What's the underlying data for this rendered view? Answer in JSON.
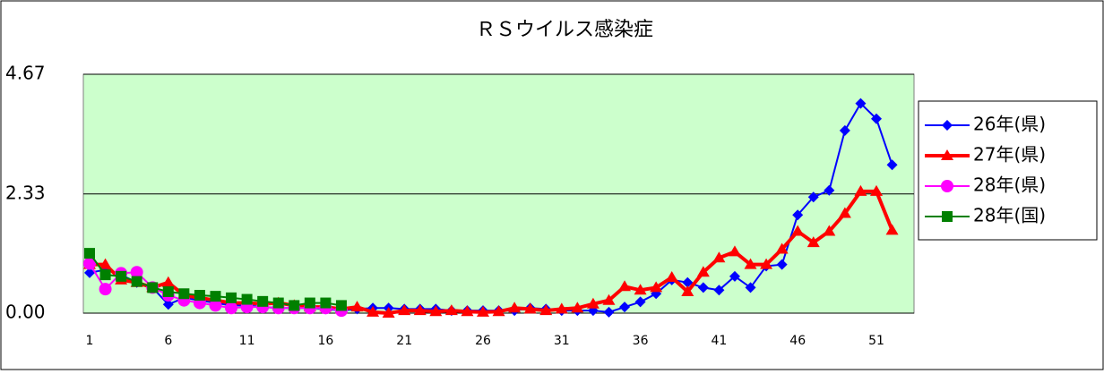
{
  "chart_data": {
    "type": "line",
    "title": "ＲＳウイルス感染症",
    "categories": [
      "1",
      null,
      null,
      null,
      null,
      "6",
      null,
      null,
      null,
      null,
      "11",
      null,
      null,
      null,
      null,
      "16",
      null,
      null,
      null,
      null,
      "21",
      null,
      null,
      null,
      null,
      "26",
      null,
      null,
      null,
      null,
      "31",
      null,
      null,
      null,
      null,
      "36",
      null,
      null,
      null,
      null,
      "41",
      null,
      null,
      null,
      null,
      "46",
      null,
      null,
      null,
      null,
      "51",
      null
    ],
    "ylim": [
      0,
      4.67
    ],
    "yticks": [
      {
        "value": 0,
        "label": "0.00"
      },
      2.33,
      4.67
    ],
    "grid": true,
    "legend": "right",
    "series": [
      {
        "name": "26年(県)",
        "color": "#0000ff",
        "marker": "diamond",
        "line_width": 2,
        "values": [
          0.79,
          0.85,
          0.75,
          0.6,
          0.5,
          0.17,
          0.3,
          0.25,
          0.2,
          0.15,
          0.15,
          0.12,
          0.1,
          0.1,
          0.1,
          0.08,
          0.05,
          0.08,
          0.1,
          0.1,
          0.08,
          0.08,
          0.08,
          0.05,
          0.05,
          0.05,
          0.05,
          0.05,
          0.1,
          0.08,
          0.05,
          0.05,
          0.05,
          0.02,
          0.12,
          0.22,
          0.38,
          0.65,
          0.6,
          0.5,
          0.45,
          0.72,
          0.5,
          0.92,
          0.95,
          1.92,
          2.27,
          2.4,
          3.57,
          4.1,
          3.8,
          2.9
        ]
      },
      {
        "name": "27年(県)",
        "color": "#ff0000",
        "marker": "triangle",
        "line_width": 4,
        "values": [
          0.95,
          0.95,
          0.65,
          0.6,
          0.5,
          0.6,
          0.35,
          0.3,
          0.25,
          0.2,
          0.2,
          0.18,
          0.2,
          0.15,
          0.12,
          0.12,
          0.08,
          0.12,
          0.02,
          0.0,
          0.05,
          0.05,
          0.03,
          0.05,
          0.03,
          0.02,
          0.03,
          0.1,
          0.08,
          0.05,
          0.08,
          0.1,
          0.18,
          0.25,
          0.52,
          0.45,
          0.5,
          0.7,
          0.42,
          0.8,
          1.08,
          1.2,
          0.95,
          0.95,
          1.25,
          1.6,
          1.38,
          1.6,
          1.95,
          2.38,
          2.38,
          1.62
        ]
      },
      {
        "name": "28年(県)",
        "color": "#ff00ff",
        "marker": "circle",
        "line_width": 2,
        "values": [
          0.97,
          0.47,
          0.78,
          0.8,
          0.5,
          0.35,
          0.25,
          0.2,
          0.15,
          0.1,
          0.12,
          0.12,
          0.1,
          0.1,
          0.1,
          0.1,
          0.05,
          null,
          null,
          null,
          null,
          null,
          null,
          null,
          null,
          null,
          null,
          null,
          null,
          null,
          null,
          null,
          null,
          null,
          null,
          null,
          null,
          null,
          null,
          null,
          null,
          null,
          null,
          null,
          null,
          null,
          null,
          null,
          null,
          null,
          null,
          null
        ]
      },
      {
        "name": "28年(国)",
        "color": "#008000",
        "marker": "square",
        "line_width": 2,
        "values": [
          1.17,
          0.75,
          0.72,
          0.62,
          0.5,
          0.42,
          0.38,
          0.35,
          0.33,
          0.3,
          0.27,
          0.23,
          0.2,
          0.15,
          0.2,
          0.2,
          0.15,
          null,
          null,
          null,
          null,
          null,
          null,
          null,
          null,
          null,
          null,
          null,
          null,
          null,
          null,
          null,
          null,
          null,
          null,
          null,
          null,
          null,
          null,
          null,
          null,
          null,
          null,
          null,
          null,
          null,
          null,
          null,
          null,
          null,
          null,
          null
        ]
      }
    ]
  }
}
